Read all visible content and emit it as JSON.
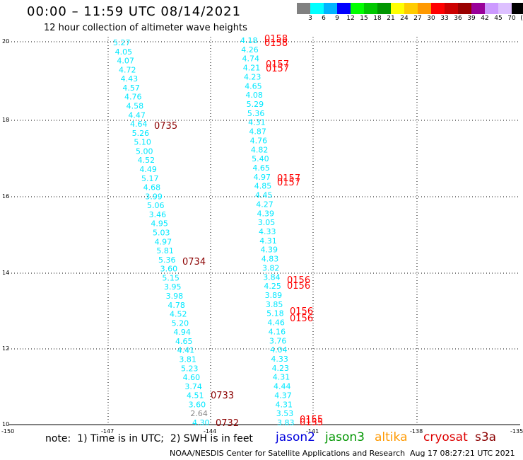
{
  "title": "00:00 – 11:59 UTC 08/14/2021",
  "subtitle": "12 hour collection of altimeter wave heights",
  "scale": {
    "colors": [
      "#808080",
      "#00ffff",
      "#00b4ff",
      "#0000ff",
      "#00ff00",
      "#00c800",
      "#009600",
      "#ffff00",
      "#ffcc00",
      "#ff9900",
      "#ff0000",
      "#cc0000",
      "#990000",
      "#990099",
      "#cc99ff",
      "#ddc0ff",
      "#000000"
    ],
    "labels": [
      "3",
      "6",
      "9",
      "12",
      "15",
      "18",
      "21",
      "24",
      "27",
      "30",
      "33",
      "36",
      "39",
      "42",
      "45",
      "70",
      "(ft)"
    ]
  },
  "axes": {
    "lat_ticks": [
      "20",
      "18",
      "16",
      "14",
      "12",
      "10"
    ],
    "lon_ticks": [
      "-150",
      "-147",
      "-144",
      "-141",
      "-138",
      "-135"
    ]
  },
  "colors": {
    "cyan": "#00e8ff",
    "gray": "#888888",
    "darkred": "#8b0000",
    "red": "#ff0000",
    "grid": "#000000"
  },
  "tracks": {
    "west_swh": [
      "5.27",
      "4.05",
      "4.07",
      "4.72",
      "4.43",
      "4.57",
      "4.76",
      "4.58",
      "4.47",
      "4.64",
      "5.26",
      "5.10",
      "5.00",
      "4.52",
      "4.49",
      "5.17",
      "4.68",
      "3.99",
      "5.06",
      "3.46",
      "4.95",
      "5.03",
      "4.97",
      "5.81",
      "5.36",
      "3.60",
      "5.15",
      "3.95",
      "3.98",
      "4.78",
      "4.52",
      "5.20",
      "4.94",
      "4.65",
      "4.41",
      "3.81",
      "5.23",
      "4.60",
      "3.74",
      "4.51",
      "3.60",
      "2.64",
      "4.30"
    ],
    "west_times": [
      "0735",
      "0734",
      "0733",
      "0732"
    ],
    "east_swh": [
      "4.18",
      "4.26",
      "4.74",
      "4.21",
      "4.23",
      "4.65",
      "4.08",
      "5.29",
      "5.36",
      "4.31",
      "4.87",
      "4.76",
      "4.82",
      "5.40",
      "4.65",
      "4.97",
      "4.85",
      "4.45",
      "4.27",
      "4.39",
      "3.05",
      "4.33",
      "4.31",
      "4.39",
      "4.83",
      "3.82",
      "3.84",
      "4.25",
      "3.89",
      "3.85",
      "5.18",
      "4.46",
      "4.16",
      "3.76",
      "4.04",
      "4.33",
      "4.23",
      "4.31",
      "4.44",
      "4.37",
      "4.31",
      "3.53",
      "3.83"
    ],
    "east_times": [
      "0158",
      "0158",
      "0157",
      "0157",
      "0157",
      "0157",
      "0156",
      "0156",
      "0156",
      "0156",
      "0155",
      "0155"
    ]
  },
  "note": "note:  1) Time is in UTC;  2) SWH is in feet",
  "legend": {
    "jason2": "jason2",
    "jason3": "jason3",
    "altika": "altika",
    "cryosat": "cryosat",
    "s3a": "s3a",
    "colors": {
      "jason2": "#0000dd",
      "jason3": "#009600",
      "altika": "#ff9900",
      "cryosat": "#dd0000",
      "s3a": "#8b0000"
    }
  },
  "credit": "NOAA/NESDIS Center for Satellite Applications and Research",
  "timestamp": "Aug 17 08:27:21 UTC 2021"
}
